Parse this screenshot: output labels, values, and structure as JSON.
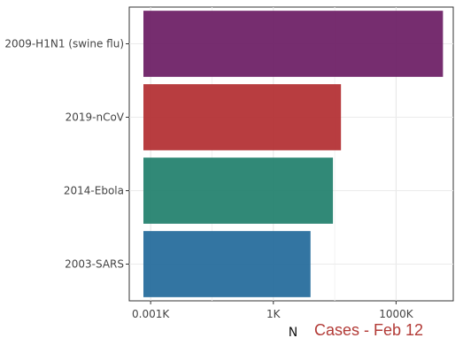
{
  "chart_data": {
    "type": "bar",
    "orientation": "horizontal",
    "xscale": "log10",
    "categories": [
      "2009-H1N1 (swine flu)",
      "2019-nCoV",
      "2014-Ebola",
      "2003-SARS"
    ],
    "values": [
      14000000,
      45000,
      28600,
      8100
    ],
    "colors": [
      "#6a1b63",
      "#b22d30",
      "#1f7f6b",
      "#22699a"
    ],
    "xticks": [
      1,
      1000,
      1000000
    ],
    "xtick_labels": [
      "0.001K",
      "1K",
      "1000K"
    ],
    "xlim": [
      0.3,
      25000000
    ],
    "xlabel": "N",
    "ylabel": "",
    "grid": true,
    "annotation": {
      "text": "Cases - Feb 12",
      "color": "#b23a36"
    }
  }
}
